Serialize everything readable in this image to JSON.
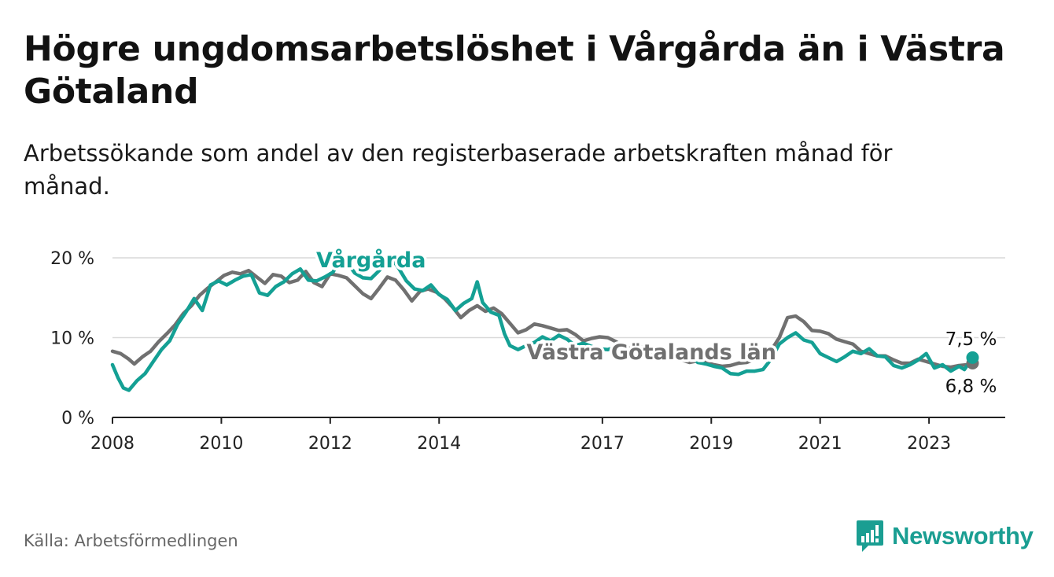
{
  "title": "Högre ungdomsarbetslöshet i Vårgårda än i Västra Götaland",
  "subtitle": "Arbetssökande som andel av den registerbaserade arbetskraften månad för månad.",
  "source": "Källa: Arbetsförmedlingen",
  "brand": "Newsworthy",
  "colors": {
    "vargarda": "#14a094",
    "vg": "#707070",
    "grid": "#d9d9d9",
    "axis": "#222222",
    "brand": "#1a9e92"
  },
  "chart_data": {
    "type": "line",
    "xlabel": "",
    "ylabel": "",
    "xlim": [
      2008,
      2024.4
    ],
    "ylim": [
      0,
      20
    ],
    "x_ticks": [
      2008,
      2010,
      2012,
      2014,
      2017,
      2019,
      2021,
      2023
    ],
    "y_ticks": [
      {
        "value": 0,
        "label": "0 %"
      },
      {
        "value": 10,
        "label": "10 %"
      },
      {
        "value": 20,
        "label": "20 %"
      }
    ],
    "series": [
      {
        "name": "Västra Götalands län",
        "key": "vg",
        "last_label": "6,8 %",
        "points": [
          [
            2008.0,
            8.3
          ],
          [
            2008.15,
            8.0
          ],
          [
            2008.3,
            7.3
          ],
          [
            2008.4,
            6.7
          ],
          [
            2008.55,
            7.6
          ],
          [
            2008.7,
            8.3
          ],
          [
            2008.85,
            9.5
          ],
          [
            2009.0,
            10.5
          ],
          [
            2009.15,
            11.6
          ],
          [
            2009.3,
            13.0
          ],
          [
            2009.45,
            14.0
          ],
          [
            2009.6,
            15.3
          ],
          [
            2009.75,
            16.2
          ],
          [
            2009.9,
            17.0
          ],
          [
            2010.05,
            17.8
          ],
          [
            2010.2,
            18.2
          ],
          [
            2010.35,
            18.0
          ],
          [
            2010.5,
            18.4
          ],
          [
            2010.65,
            17.6
          ],
          [
            2010.8,
            16.8
          ],
          [
            2010.95,
            17.9
          ],
          [
            2011.1,
            17.7
          ],
          [
            2011.25,
            16.9
          ],
          [
            2011.4,
            17.2
          ],
          [
            2011.55,
            18.3
          ],
          [
            2011.7,
            16.9
          ],
          [
            2011.85,
            16.4
          ],
          [
            2012.0,
            18.0
          ],
          [
            2012.15,
            17.8
          ],
          [
            2012.3,
            17.5
          ],
          [
            2012.45,
            16.5
          ],
          [
            2012.6,
            15.5
          ],
          [
            2012.75,
            14.9
          ],
          [
            2012.9,
            16.2
          ],
          [
            2013.05,
            17.6
          ],
          [
            2013.2,
            17.2
          ],
          [
            2013.35,
            16.0
          ],
          [
            2013.5,
            14.6
          ],
          [
            2013.65,
            15.8
          ],
          [
            2013.8,
            16.1
          ],
          [
            2013.95,
            15.7
          ],
          [
            2014.1,
            14.9
          ],
          [
            2014.25,
            13.8
          ],
          [
            2014.4,
            12.5
          ],
          [
            2014.55,
            13.4
          ],
          [
            2014.7,
            14.0
          ],
          [
            2014.85,
            13.3
          ],
          [
            2015.0,
            13.7
          ],
          [
            2015.15,
            13.0
          ],
          [
            2015.3,
            11.8
          ],
          [
            2015.45,
            10.6
          ],
          [
            2015.6,
            11.0
          ],
          [
            2015.75,
            11.7
          ],
          [
            2015.9,
            11.5
          ],
          [
            2016.05,
            11.2
          ],
          [
            2016.2,
            10.9
          ],
          [
            2016.35,
            11.0
          ],
          [
            2016.5,
            10.4
          ],
          [
            2016.65,
            9.6
          ],
          [
            2016.8,
            9.9
          ],
          [
            2016.95,
            10.1
          ],
          [
            2017.1,
            10.0
          ],
          [
            2017.25,
            9.5
          ],
          [
            2017.4,
            8.8
          ],
          [
            2017.55,
            8.6
          ],
          [
            2017.7,
            8.9
          ],
          [
            2017.85,
            8.2
          ],
          [
            2018.0,
            7.9
          ],
          [
            2018.15,
            7.6
          ],
          [
            2018.3,
            7.7
          ],
          [
            2018.45,
            7.2
          ],
          [
            2018.6,
            6.9
          ],
          [
            2018.75,
            7.1
          ],
          [
            2018.9,
            6.9
          ],
          [
            2019.05,
            6.6
          ],
          [
            2019.2,
            6.4
          ],
          [
            2019.35,
            6.5
          ],
          [
            2019.5,
            6.8
          ],
          [
            2019.65,
            6.9
          ],
          [
            2019.8,
            7.3
          ],
          [
            2019.95,
            7.8
          ],
          [
            2020.1,
            8.4
          ],
          [
            2020.25,
            10.0
          ],
          [
            2020.4,
            12.5
          ],
          [
            2020.55,
            12.7
          ],
          [
            2020.7,
            12.0
          ],
          [
            2020.85,
            10.9
          ],
          [
            2021.0,
            10.8
          ],
          [
            2021.15,
            10.5
          ],
          [
            2021.3,
            9.8
          ],
          [
            2021.45,
            9.5
          ],
          [
            2021.6,
            9.2
          ],
          [
            2021.75,
            8.3
          ],
          [
            2021.9,
            8.0
          ],
          [
            2022.05,
            7.7
          ],
          [
            2022.2,
            7.7
          ],
          [
            2022.35,
            7.2
          ],
          [
            2022.5,
            6.8
          ],
          [
            2022.65,
            6.8
          ],
          [
            2022.8,
            7.3
          ],
          [
            2022.95,
            7.0
          ],
          [
            2023.1,
            6.7
          ],
          [
            2023.25,
            6.4
          ],
          [
            2023.4,
            6.3
          ],
          [
            2023.55,
            6.5
          ],
          [
            2023.7,
            6.6
          ],
          [
            2023.8,
            6.8
          ]
        ]
      },
      {
        "name": "Vårgårda",
        "key": "vargarda",
        "last_label": "7,5 %",
        "points": [
          [
            2008.0,
            6.6
          ],
          [
            2008.1,
            5.0
          ],
          [
            2008.2,
            3.7
          ],
          [
            2008.3,
            3.4
          ],
          [
            2008.45,
            4.6
          ],
          [
            2008.6,
            5.5
          ],
          [
            2008.75,
            7.0
          ],
          [
            2008.9,
            8.5
          ],
          [
            2009.05,
            9.6
          ],
          [
            2009.2,
            11.7
          ],
          [
            2009.35,
            13.2
          ],
          [
            2009.5,
            14.9
          ],
          [
            2009.65,
            13.4
          ],
          [
            2009.8,
            16.6
          ],
          [
            2009.95,
            17.1
          ],
          [
            2010.1,
            16.6
          ],
          [
            2010.25,
            17.2
          ],
          [
            2010.4,
            17.7
          ],
          [
            2010.55,
            17.9
          ],
          [
            2010.7,
            15.6
          ],
          [
            2010.85,
            15.3
          ],
          [
            2011.0,
            16.4
          ],
          [
            2011.15,
            17.0
          ],
          [
            2011.3,
            18.0
          ],
          [
            2011.45,
            18.6
          ],
          [
            2011.6,
            17.2
          ],
          [
            2011.75,
            17.1
          ],
          [
            2011.9,
            17.6
          ],
          [
            2012.05,
            18.2
          ],
          [
            2012.2,
            20.0
          ],
          [
            2012.3,
            19.5
          ],
          [
            2012.45,
            18.1
          ],
          [
            2012.6,
            17.5
          ],
          [
            2012.75,
            17.4
          ],
          [
            2012.9,
            18.4
          ],
          [
            2013.0,
            19.2
          ],
          [
            2013.1,
            20.2
          ],
          [
            2013.25,
            18.8
          ],
          [
            2013.4,
            17.1
          ],
          [
            2013.55,
            16.1
          ],
          [
            2013.7,
            15.9
          ],
          [
            2013.85,
            16.6
          ],
          [
            2014.0,
            15.4
          ],
          [
            2014.15,
            14.8
          ],
          [
            2014.3,
            13.4
          ],
          [
            2014.45,
            14.3
          ],
          [
            2014.6,
            14.9
          ],
          [
            2014.7,
            17.0
          ],
          [
            2014.8,
            14.4
          ],
          [
            2014.95,
            13.2
          ],
          [
            2015.1,
            12.8
          ],
          [
            2015.2,
            10.5
          ],
          [
            2015.3,
            9.0
          ],
          [
            2015.45,
            8.5
          ],
          [
            2015.6,
            9.0
          ],
          [
            2015.75,
            9.4
          ],
          [
            2015.9,
            10.1
          ],
          [
            2016.05,
            9.6
          ],
          [
            2016.2,
            10.3
          ],
          [
            2016.35,
            9.8
          ],
          [
            2016.5,
            9.0
          ],
          [
            2016.65,
            9.3
          ],
          [
            2016.8,
            8.9
          ],
          [
            2016.95,
            8.6
          ],
          [
            2017.1,
            8.5
          ],
          [
            2017.25,
            8.8
          ],
          [
            2017.4,
            8.1
          ],
          [
            2017.55,
            8.5
          ],
          [
            2017.7,
            8.8
          ],
          [
            2017.85,
            8.7
          ],
          [
            2018.0,
            8.3
          ],
          [
            2018.15,
            8.1
          ],
          [
            2018.3,
            7.6
          ],
          [
            2018.45,
            7.3
          ],
          [
            2018.6,
            7.8
          ],
          [
            2018.75,
            6.9
          ],
          [
            2018.9,
            6.7
          ],
          [
            2019.05,
            6.4
          ],
          [
            2019.2,
            6.2
          ],
          [
            2019.35,
            5.5
          ],
          [
            2019.5,
            5.4
          ],
          [
            2019.65,
            5.8
          ],
          [
            2019.8,
            5.8
          ],
          [
            2019.95,
            6.0
          ],
          [
            2020.1,
            7.3
          ],
          [
            2020.25,
            9.2
          ],
          [
            2020.4,
            10.0
          ],
          [
            2020.55,
            10.6
          ],
          [
            2020.7,
            9.7
          ],
          [
            2020.85,
            9.4
          ],
          [
            2021.0,
            8.0
          ],
          [
            2021.15,
            7.5
          ],
          [
            2021.3,
            7.0
          ],
          [
            2021.45,
            7.6
          ],
          [
            2021.6,
            8.3
          ],
          [
            2021.75,
            8.0
          ],
          [
            2021.9,
            8.6
          ],
          [
            2022.05,
            7.7
          ],
          [
            2022.2,
            7.6
          ],
          [
            2022.35,
            6.5
          ],
          [
            2022.5,
            6.2
          ],
          [
            2022.65,
            6.6
          ],
          [
            2022.8,
            7.2
          ],
          [
            2022.95,
            8.0
          ],
          [
            2023.1,
            6.2
          ],
          [
            2023.25,
            6.6
          ],
          [
            2023.4,
            5.8
          ],
          [
            2023.55,
            6.4
          ],
          [
            2023.65,
            6.0
          ],
          [
            2023.8,
            7.5
          ]
        ]
      }
    ],
    "annotations": [
      {
        "text": "Vårgårda",
        "series": "vargarda",
        "x": 2012.75,
        "y": 18.8
      },
      {
        "text": "Västra Götalands län",
        "series": "vg",
        "x": 2017.9,
        "y": 7.3
      }
    ]
  }
}
